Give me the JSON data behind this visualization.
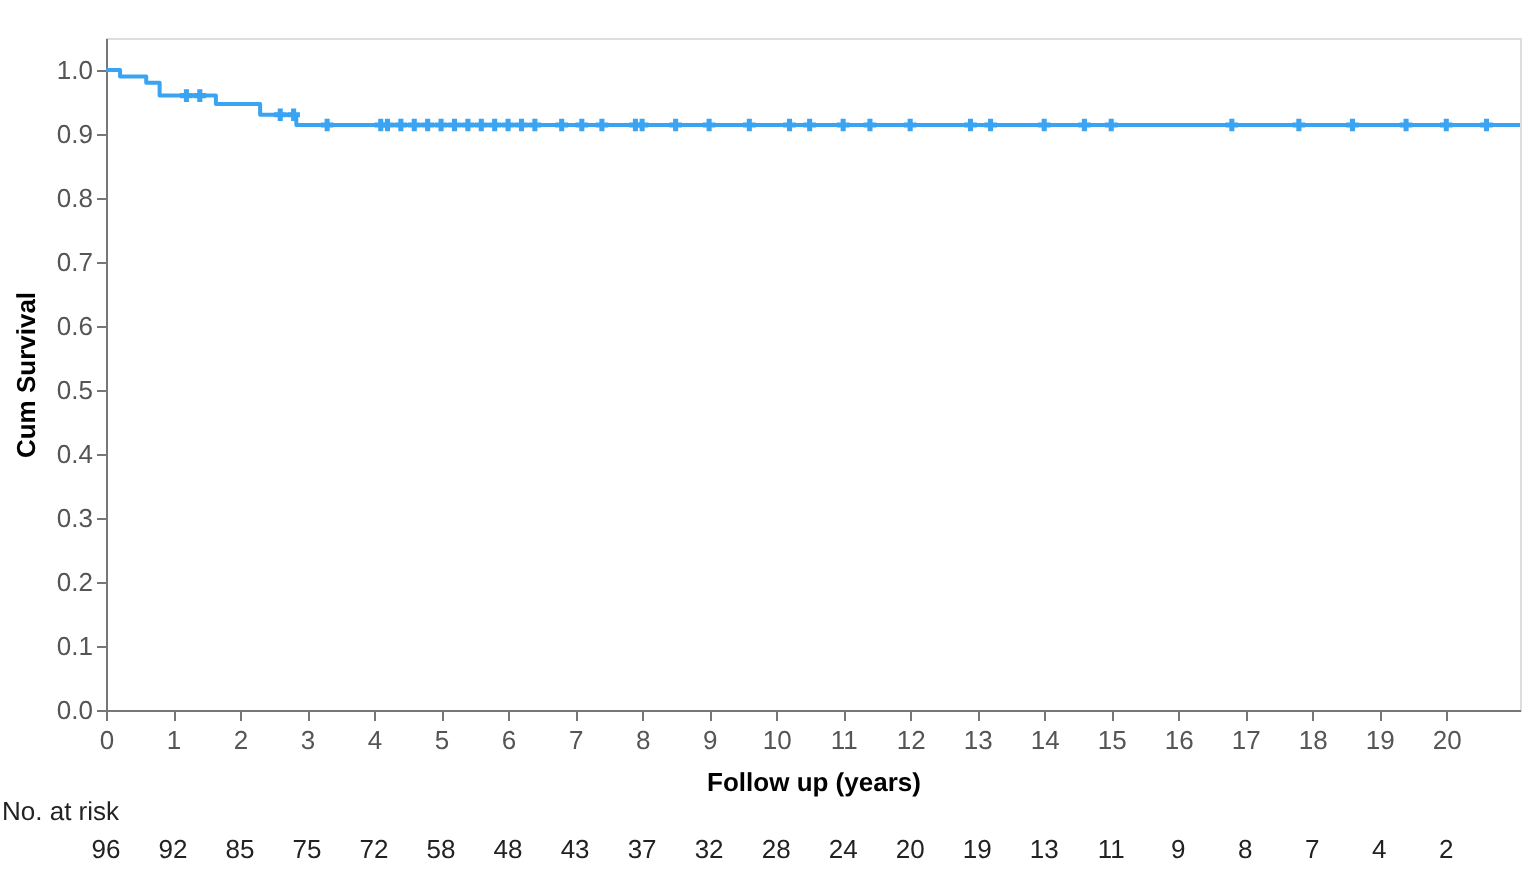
{
  "chart_data": {
    "type": "step",
    "xlabel": "Follow up (years)",
    "ylabel": "Cum Survival",
    "xlim": [
      0,
      21.1
    ],
    "ylim": [
      0,
      1.05
    ],
    "xticks": [
      0,
      1,
      2,
      3,
      4,
      5,
      6,
      7,
      8,
      9,
      10,
      11,
      12,
      13,
      14,
      15,
      16,
      17,
      18,
      19,
      20
    ],
    "yticks": [
      {
        "value": 0,
        "label": "0.0"
      },
      0.1,
      0.2,
      0.3,
      0.4,
      0.5,
      0.6,
      0.7,
      0.8,
      0.9,
      {
        "value": 1,
        "label": "1.0"
      }
    ],
    "grid": false,
    "line_style": "solid",
    "series": [
      {
        "color": "#3aa3f2",
        "x": [
          0,
          0.21,
          0.6,
          0.8,
          1.64,
          2.3,
          2.84,
          21.1
        ],
        "values": [
          1.0,
          0.99,
          0.98,
          0.96,
          0.947,
          0.93,
          0.914,
          0.914
        ]
      },
      {
        "type": "scatter",
        "marker": "cross",
        "color": "#3aa3f2",
        "x": [
          1.2,
          1.4,
          2.6,
          2.8,
          3.3,
          4.1,
          4.2,
          4.4,
          4.6,
          4.8,
          5.0,
          5.2,
          5.4,
          5.6,
          5.8,
          6.0,
          6.2,
          6.4,
          6.8,
          7.1,
          7.4,
          7.9,
          8.0,
          8.5,
          9.0,
          9.6,
          10.2,
          10.5,
          11.0,
          11.4,
          12.0,
          12.9,
          13.2,
          14.0,
          14.6,
          15.0,
          16.8,
          17.8,
          18.6,
          19.4,
          20.0,
          20.6
        ],
        "values": [
          0.96,
          0.96,
          0.93,
          0.93,
          0.914,
          0.914,
          0.914,
          0.914,
          0.914,
          0.914,
          0.914,
          0.914,
          0.914,
          0.914,
          0.914,
          0.914,
          0.914,
          0.914,
          0.914,
          0.914,
          0.914,
          0.914,
          0.914,
          0.914,
          0.914,
          0.914,
          0.914,
          0.914,
          0.914,
          0.914,
          0.914,
          0.914,
          0.914,
          0.914,
          0.914,
          0.914,
          0.914,
          0.914,
          0.914,
          0.914,
          0.914,
          0.914
        ]
      }
    ],
    "annotations": [
      "No. at risk",
      "96",
      "92",
      "85",
      "75",
      "72",
      "58",
      "48",
      "43",
      "37",
      "32",
      "28",
      "24",
      "20",
      "19",
      "13",
      "11",
      "9",
      "8",
      "7",
      "4",
      "2"
    ]
  }
}
